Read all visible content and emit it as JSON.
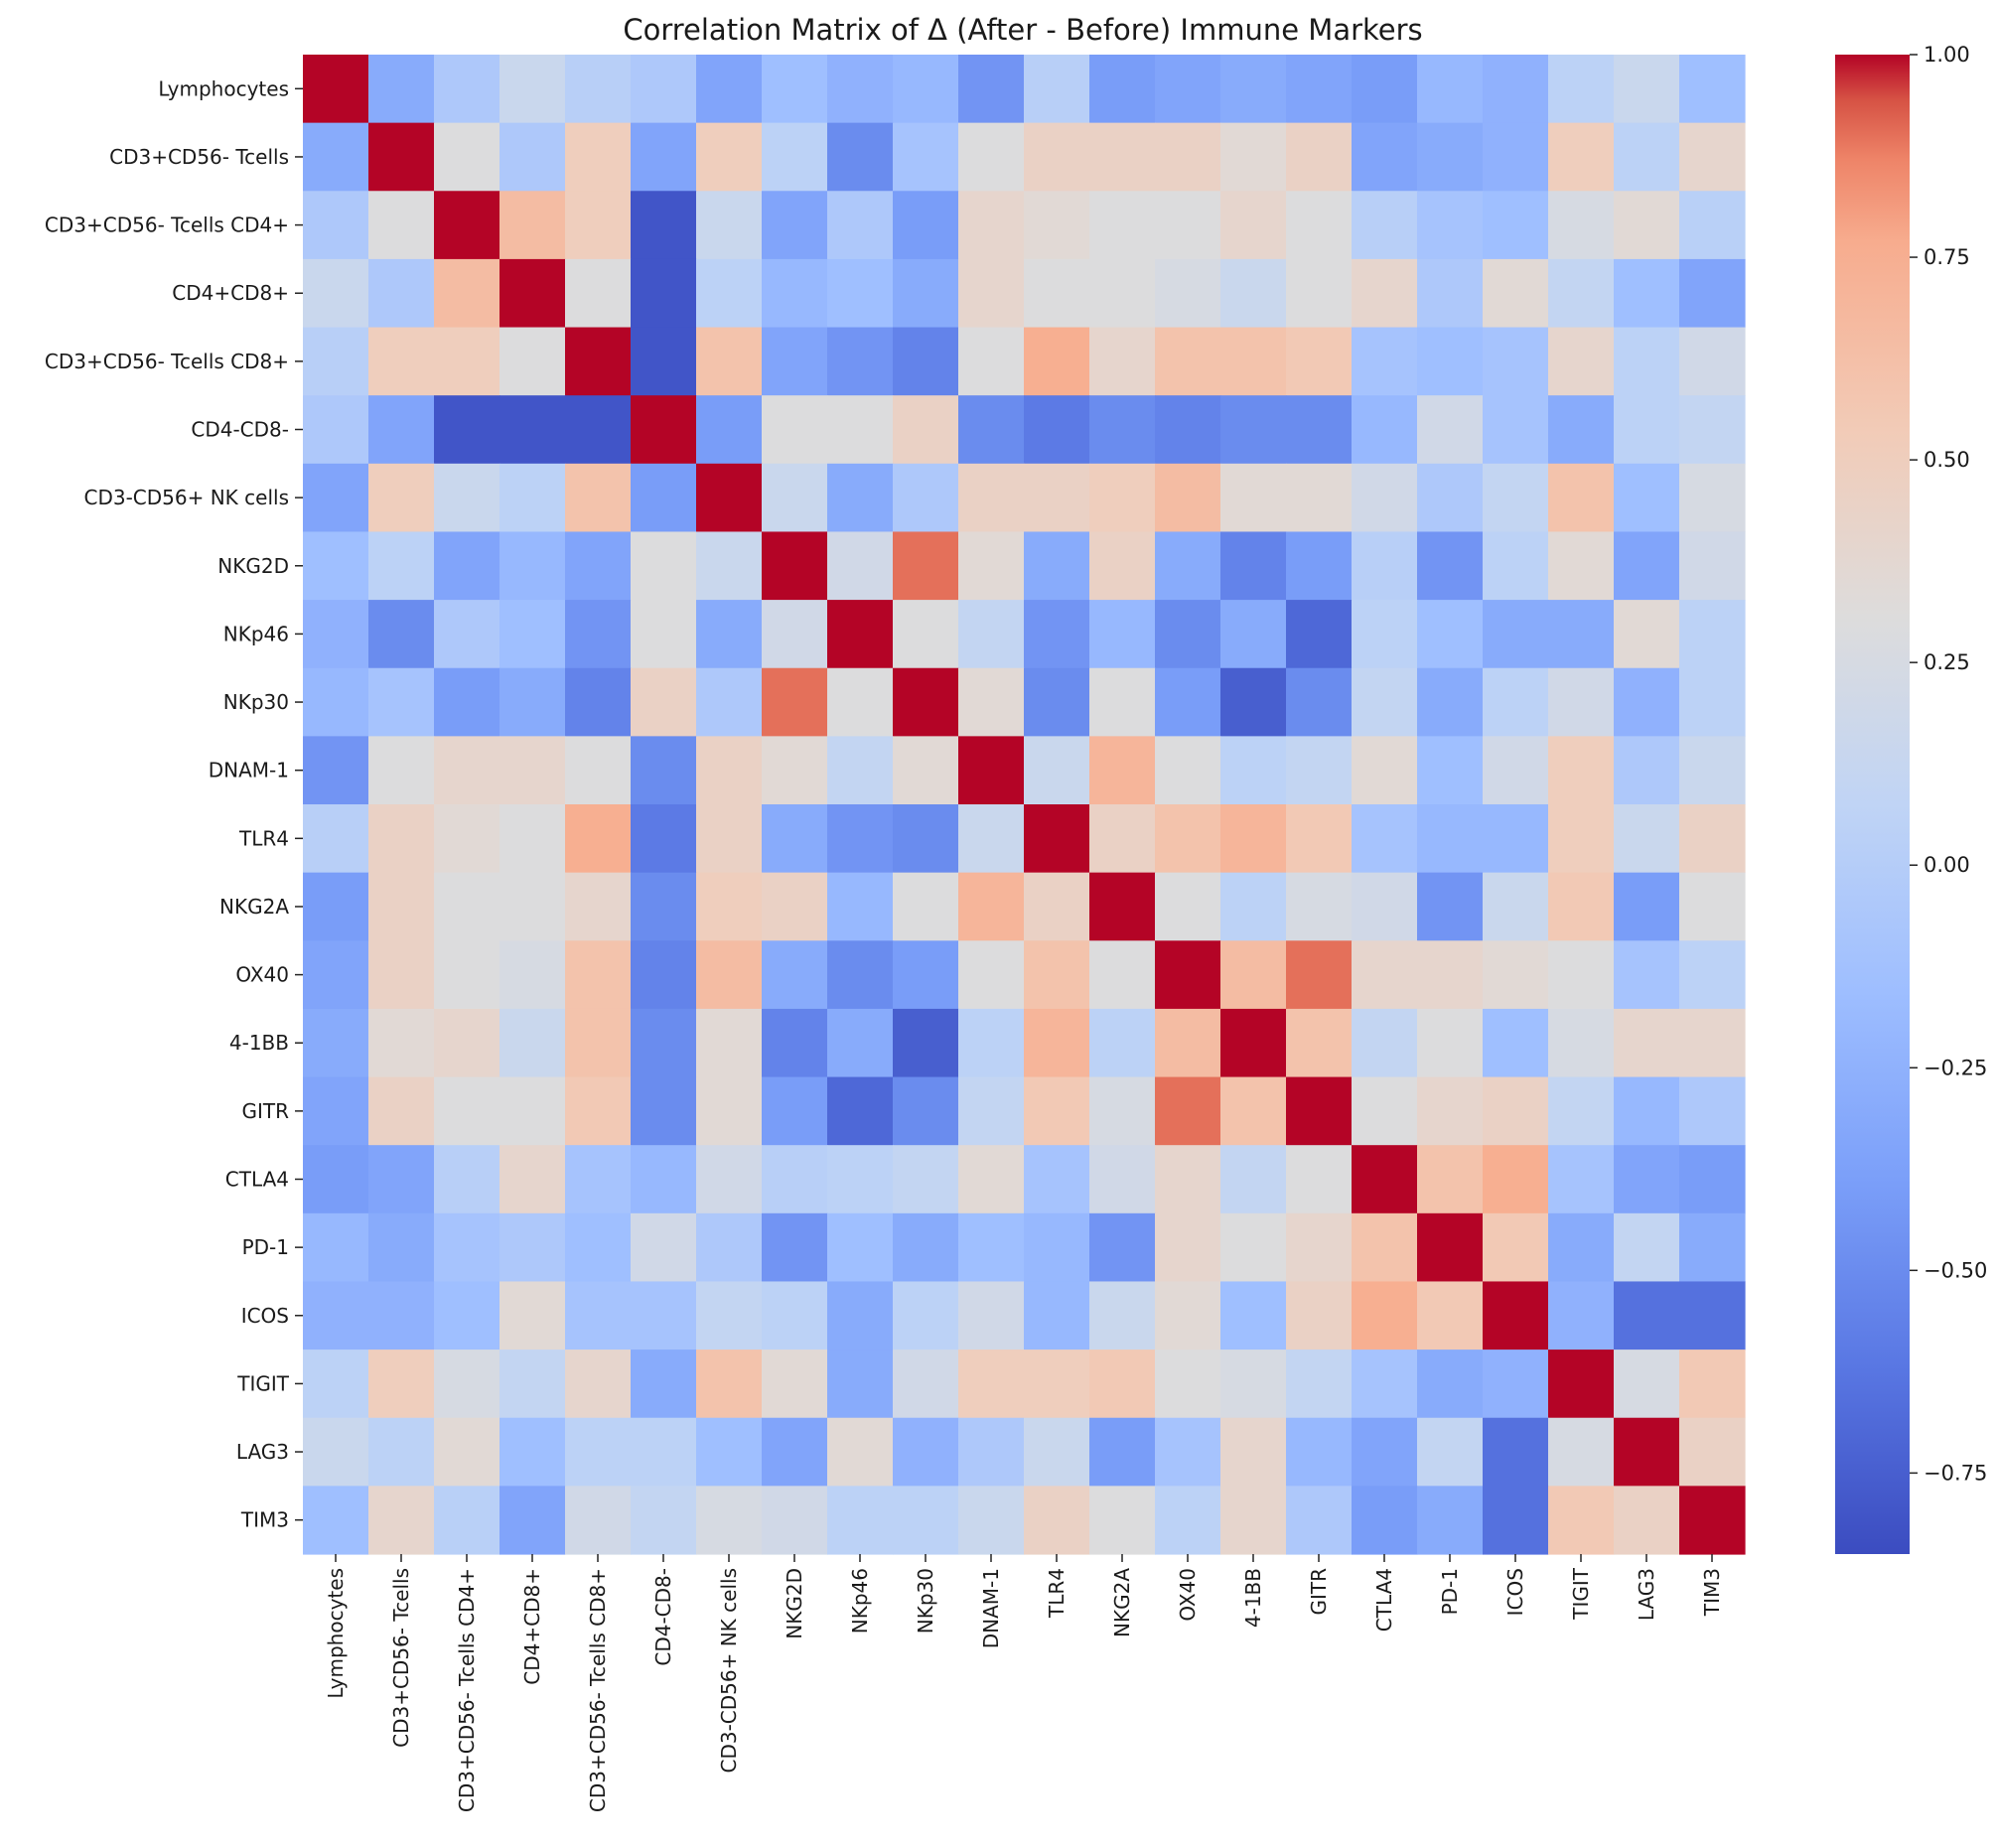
{
  "chart_data": {
    "type": "heatmap",
    "title": "Correlation Matrix of Δ (After - Before) Immune Markers",
    "xlabel": "",
    "ylabel": "",
    "labels": [
      "Lymphocytes",
      "CD3+CD56- Tcells",
      "CD3+CD56- Tcells CD4+",
      "CD4+CD8+",
      "CD3+CD56- Tcells CD8+",
      "CD4-CD8-",
      "CD3-CD56+ NK cells",
      "NKG2D",
      "NKp46",
      "NKp30",
      "DNAM-1",
      "TLR4",
      "NKG2A",
      "OX40",
      "4-1BB",
      "GITR",
      "CTLA4",
      "PD-1",
      "ICOS",
      "TIGIT",
      "LAG3",
      "TIM3"
    ],
    "values": [
      [
        1.0,
        -0.3,
        -0.05,
        0.15,
        0.02,
        -0.05,
        -0.35,
        -0.15,
        -0.25,
        -0.2,
        -0.45,
        0.02,
        -0.4,
        -0.35,
        -0.3,
        -0.35,
        -0.4,
        -0.2,
        -0.25,
        0.05,
        0.15,
        -0.15
      ],
      [
        -0.3,
        1.0,
        0.3,
        -0.05,
        0.5,
        -0.35,
        0.5,
        0.05,
        -0.5,
        -0.1,
        0.3,
        0.45,
        0.45,
        0.45,
        0.35,
        0.45,
        -0.35,
        -0.3,
        -0.25,
        0.5,
        0.05,
        0.4
      ],
      [
        -0.05,
        0.3,
        1.0,
        0.65,
        0.5,
        -0.8,
        0.15,
        -0.35,
        -0.05,
        -0.4,
        0.4,
        0.35,
        0.3,
        0.3,
        0.4,
        0.3,
        0.02,
        -0.1,
        -0.15,
        0.25,
        0.35,
        0.03
      ],
      [
        0.15,
        -0.05,
        0.65,
        1.0,
        0.3,
        -0.8,
        0.05,
        -0.2,
        -0.15,
        -0.3,
        0.4,
        0.3,
        0.3,
        0.25,
        0.15,
        0.3,
        0.4,
        -0.05,
        0.35,
        0.1,
        -0.15,
        -0.35
      ],
      [
        0.02,
        0.5,
        0.5,
        0.3,
        1.0,
        -0.8,
        0.6,
        -0.35,
        -0.45,
        -0.55,
        0.3,
        0.75,
        0.4,
        0.6,
        0.6,
        0.55,
        -0.1,
        -0.15,
        -0.1,
        0.4,
        0.05,
        0.2
      ],
      [
        -0.05,
        -0.35,
        -0.8,
        -0.8,
        -0.8,
        1.0,
        -0.4,
        0.3,
        0.3,
        0.45,
        -0.5,
        -0.6,
        -0.5,
        -0.55,
        -0.5,
        -0.5,
        -0.2,
        0.2,
        -0.1,
        -0.3,
        0.05,
        0.1
      ],
      [
        -0.35,
        0.5,
        0.15,
        0.05,
        0.6,
        -0.4,
        1.0,
        0.15,
        -0.3,
        -0.05,
        0.45,
        0.45,
        0.5,
        0.65,
        0.35,
        0.35,
        0.2,
        -0.05,
        0.1,
        0.6,
        -0.15,
        0.25
      ],
      [
        -0.15,
        0.05,
        -0.35,
        -0.2,
        -0.35,
        0.3,
        0.15,
        1.0,
        0.2,
        0.9,
        0.35,
        -0.3,
        0.45,
        -0.3,
        -0.55,
        -0.4,
        0.02,
        -0.45,
        0.05,
        0.35,
        -0.35,
        0.2
      ],
      [
        -0.25,
        -0.5,
        -0.05,
        -0.15,
        -0.45,
        0.3,
        -0.3,
        0.2,
        1.0,
        0.3,
        0.1,
        -0.45,
        -0.2,
        -0.5,
        -0.3,
        -0.7,
        0.05,
        -0.15,
        -0.3,
        -0.3,
        0.35,
        0.05
      ],
      [
        -0.2,
        -0.1,
        -0.4,
        -0.3,
        -0.55,
        0.45,
        -0.05,
        0.9,
        0.3,
        1.0,
        0.35,
        -0.5,
        0.3,
        -0.4,
        -0.75,
        -0.5,
        0.1,
        -0.3,
        0.05,
        0.2,
        -0.25,
        0.05
      ],
      [
        -0.45,
        0.3,
        0.4,
        0.4,
        0.3,
        -0.5,
        0.45,
        0.35,
        0.1,
        0.35,
        1.0,
        0.15,
        0.7,
        0.3,
        0.05,
        0.1,
        0.35,
        -0.15,
        0.2,
        0.5,
        -0.05,
        0.15
      ],
      [
        0.02,
        0.45,
        0.35,
        0.3,
        0.75,
        -0.6,
        0.45,
        -0.3,
        -0.45,
        -0.5,
        0.15,
        1.0,
        0.45,
        0.6,
        0.7,
        0.55,
        -0.1,
        -0.2,
        -0.2,
        0.5,
        0.15,
        0.45
      ],
      [
        -0.4,
        0.45,
        0.3,
        0.3,
        0.4,
        -0.5,
        0.5,
        0.45,
        -0.2,
        0.3,
        0.7,
        0.45,
        1.0,
        0.3,
        0.05,
        0.25,
        0.2,
        -0.45,
        0.15,
        0.55,
        -0.4,
        0.3
      ],
      [
        -0.35,
        0.45,
        0.3,
        0.25,
        0.6,
        -0.55,
        0.65,
        -0.3,
        -0.5,
        -0.4,
        0.3,
        0.6,
        0.3,
        1.0,
        0.65,
        0.9,
        0.4,
        0.4,
        0.35,
        0.3,
        -0.1,
        0.05
      ],
      [
        -0.3,
        0.35,
        0.4,
        0.15,
        0.6,
        -0.5,
        0.35,
        -0.55,
        -0.3,
        -0.75,
        0.05,
        0.7,
        0.05,
        0.65,
        1.0,
        0.6,
        0.1,
        0.3,
        -0.15,
        0.25,
        0.4,
        0.4
      ],
      [
        -0.35,
        0.45,
        0.3,
        0.3,
        0.55,
        -0.5,
        0.35,
        -0.4,
        -0.7,
        -0.5,
        0.1,
        0.55,
        0.25,
        0.9,
        0.6,
        1.0,
        0.3,
        0.4,
        0.45,
        0.1,
        -0.2,
        -0.05
      ],
      [
        -0.4,
        -0.35,
        0.02,
        0.4,
        -0.1,
        -0.2,
        0.2,
        0.02,
        0.05,
        0.1,
        0.35,
        -0.1,
        0.2,
        0.4,
        0.1,
        0.3,
        1.0,
        0.6,
        0.75,
        -0.1,
        -0.35,
        -0.4
      ],
      [
        -0.2,
        -0.3,
        -0.1,
        -0.05,
        -0.15,
        0.2,
        -0.05,
        -0.45,
        -0.15,
        -0.3,
        -0.15,
        -0.2,
        -0.45,
        0.4,
        0.3,
        0.4,
        0.6,
        1.0,
        0.55,
        -0.3,
        0.1,
        -0.3
      ],
      [
        -0.25,
        -0.25,
        -0.15,
        0.35,
        -0.1,
        -0.1,
        0.1,
        0.05,
        -0.3,
        0.05,
        0.2,
        -0.2,
        0.15,
        0.35,
        -0.15,
        0.45,
        0.75,
        0.55,
        1.0,
        -0.25,
        -0.65,
        -0.65
      ],
      [
        0.05,
        0.5,
        0.25,
        0.1,
        0.4,
        -0.3,
        0.6,
        0.35,
        -0.3,
        0.2,
        0.5,
        0.5,
        0.55,
        0.3,
        0.25,
        0.1,
        -0.1,
        -0.3,
        -0.25,
        1.0,
        0.25,
        0.55
      ],
      [
        0.15,
        0.05,
        0.35,
        -0.15,
        0.05,
        0.05,
        -0.15,
        -0.35,
        0.35,
        -0.25,
        -0.05,
        0.15,
        -0.4,
        -0.1,
        0.4,
        -0.2,
        -0.35,
        0.1,
        -0.65,
        0.25,
        1.0,
        0.45
      ],
      [
        -0.15,
        0.4,
        0.03,
        -0.35,
        0.2,
        0.1,
        0.25,
        0.2,
        0.05,
        0.05,
        0.15,
        0.45,
        0.3,
        0.05,
        0.4,
        -0.05,
        -0.4,
        -0.3,
        -0.65,
        0.55,
        0.45,
        1.0
      ]
    ],
    "vlim": [
      -0.85,
      1.0
    ],
    "colormap": "coolwarm",
    "colorbar": {
      "ticks": [
        1.0,
        0.75,
        0.5,
        0.25,
        0.0,
        -0.25,
        -0.5,
        -0.75
      ],
      "tick_labels": [
        "1.00",
        "0.75",
        "0.50",
        "0.25",
        "0.00",
        "−0.25",
        "−0.50",
        "−0.75"
      ]
    },
    "grid": false,
    "legend": "colorbar-right"
  }
}
